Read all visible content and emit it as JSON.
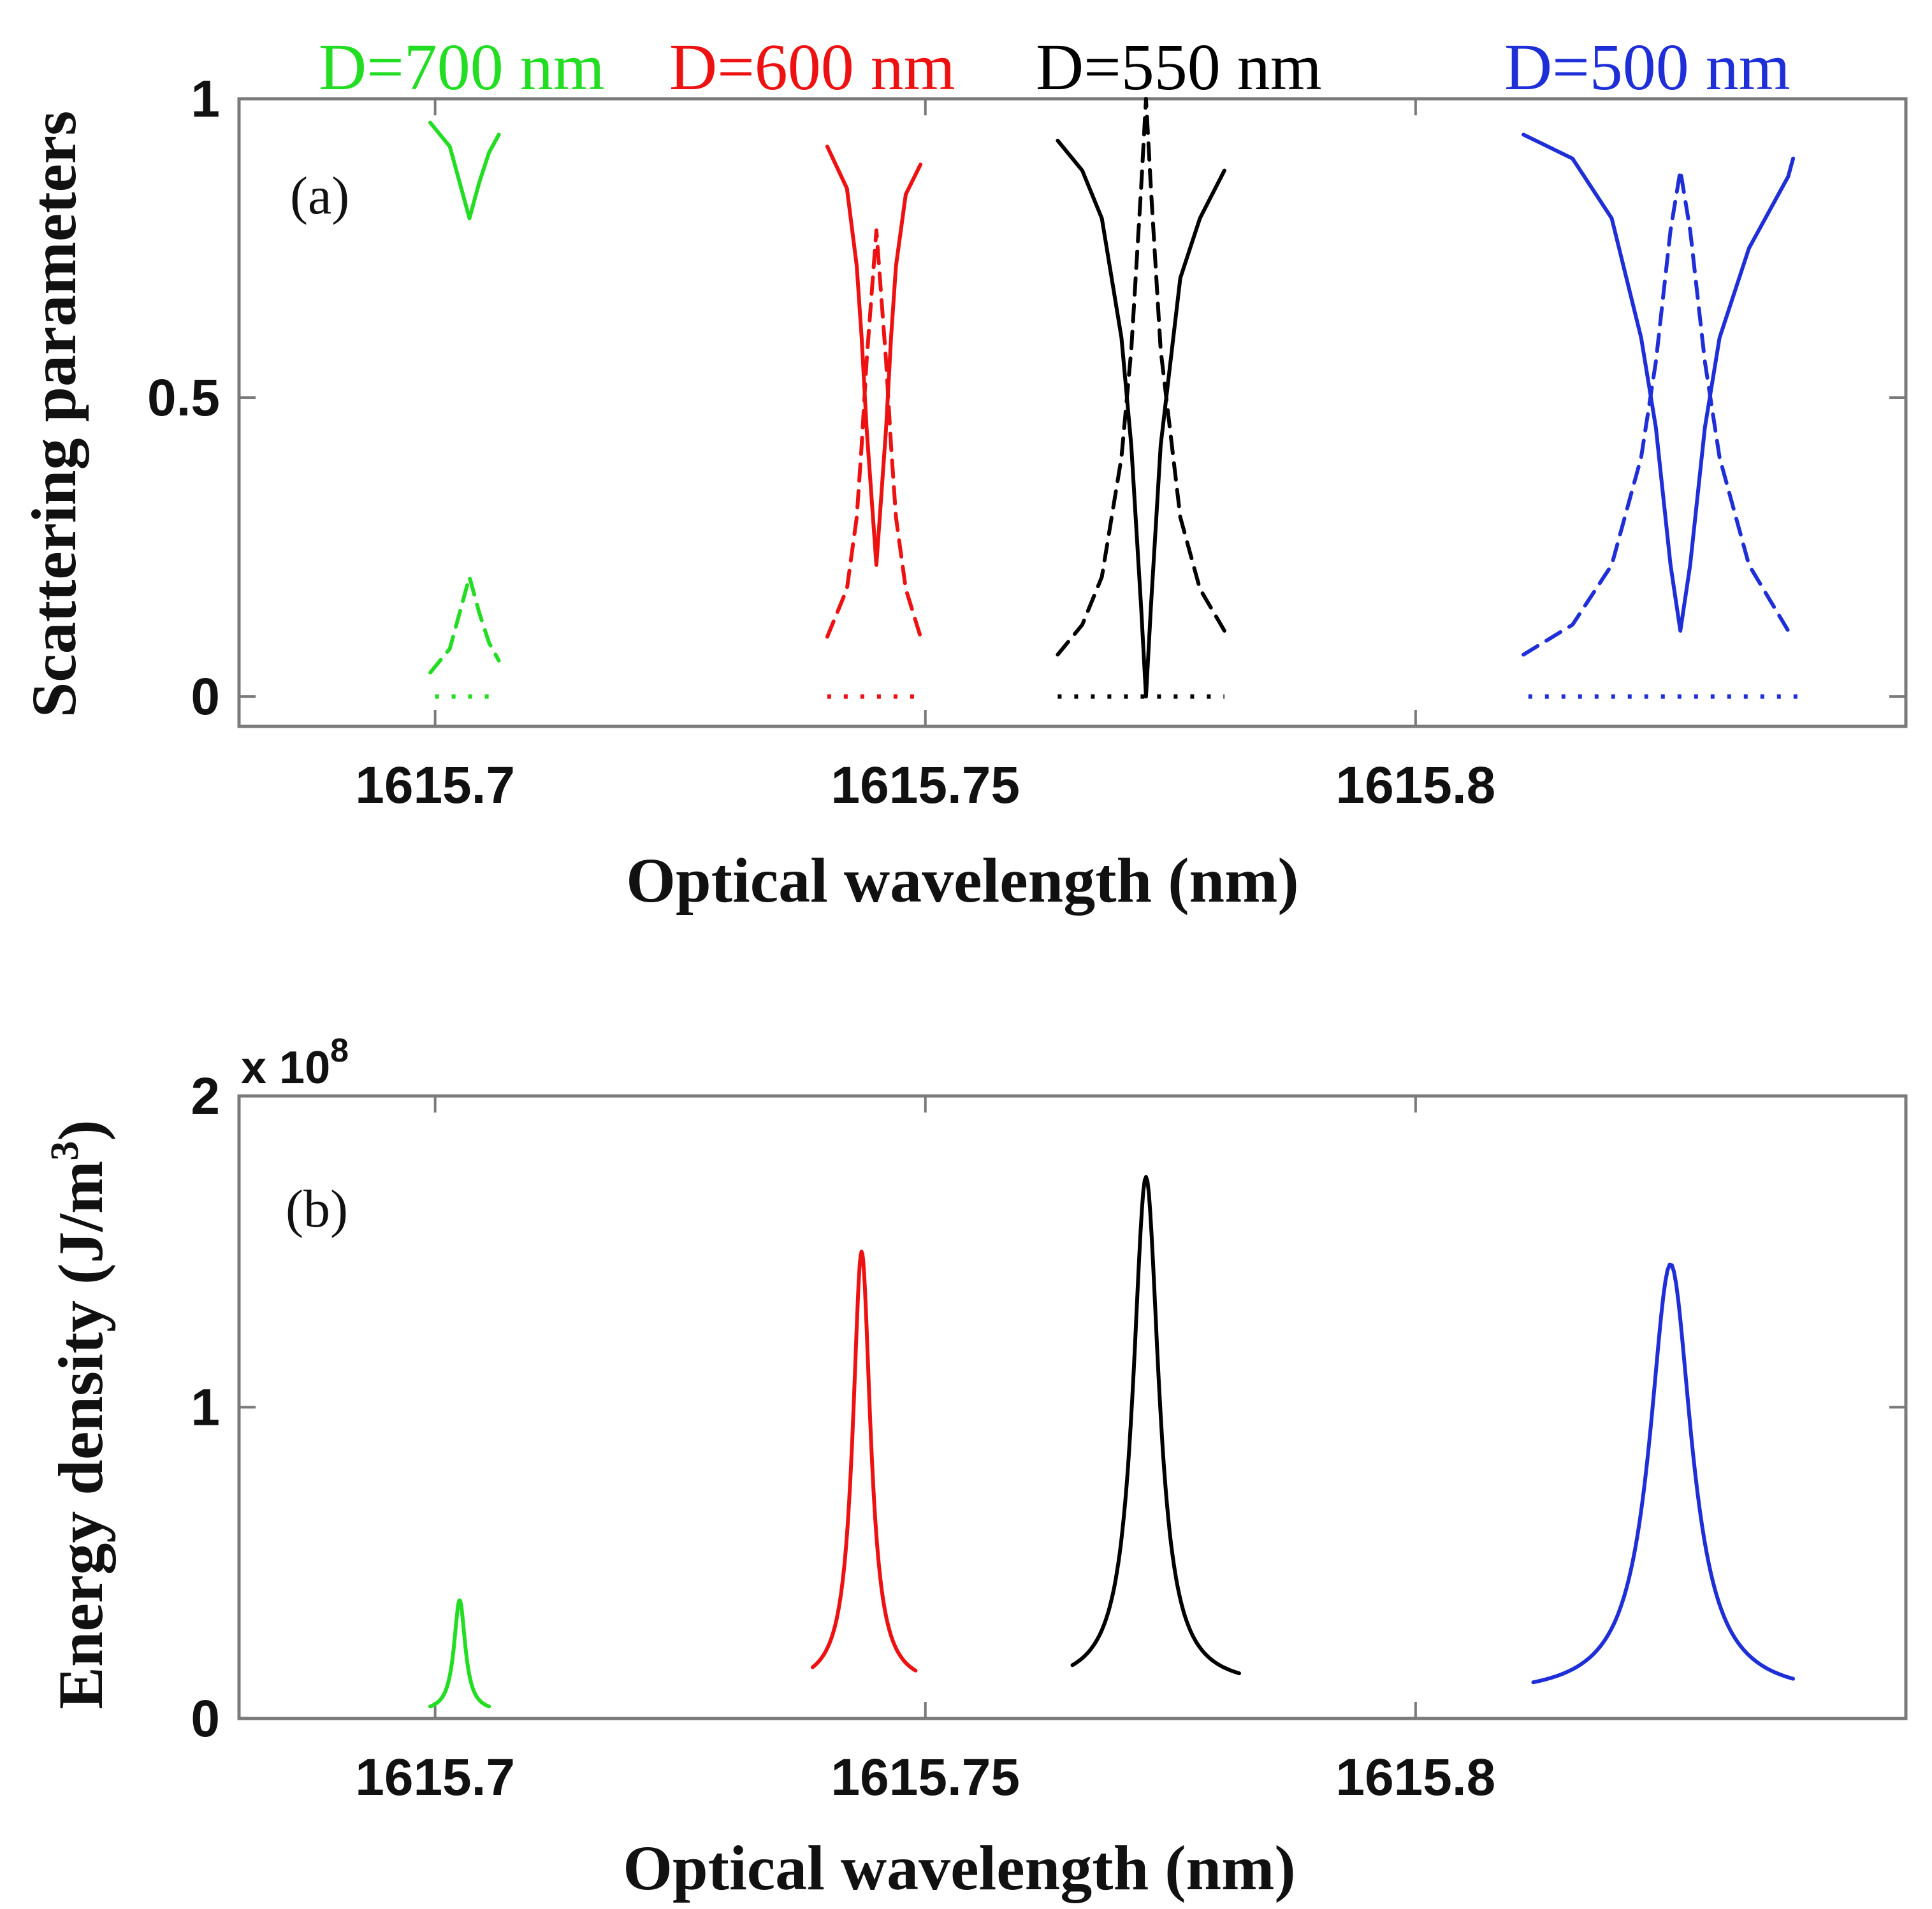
{
  "legend": [
    {
      "label": "D=700 nm",
      "color": "#22dd22"
    },
    {
      "label": "D=600 nm",
      "color": "#ee1111"
    },
    {
      "label": "D=550 nm",
      "color": "#000000"
    },
    {
      "label": "D=500 nm",
      "color": "#1f2fd8"
    }
  ],
  "chart_data": [
    {
      "type": "line",
      "panel": "(a)",
      "title": "",
      "xlabel": "Optical wavelength (nm)",
      "ylabel": "Scattering parameters",
      "xlim": [
        1615.68,
        1615.85
      ],
      "ylim": [
        -0.05,
        1.0
      ],
      "xticks": [
        1615.7,
        1615.75,
        1615.8
      ],
      "xtick_labels": [
        "1615.7",
        "1615.75",
        "1615.8"
      ],
      "yticks": [
        0,
        0.5,
        1
      ],
      "ytick_labels": [
        "0",
        "0.5",
        "1"
      ],
      "series": [
        {
          "name": "D=700 nm",
          "color": "#22dd22",
          "style": "solid",
          "x": [
            1615.6995,
            1615.7015,
            1615.7025,
            1615.7035,
            1615.7045,
            1615.7055,
            1615.7065
          ],
          "y": [
            0.96,
            0.92,
            0.86,
            0.8,
            0.86,
            0.91,
            0.94
          ]
        },
        {
          "name": "D=700 nm",
          "color": "#22dd22",
          "style": "dashed",
          "x": [
            1615.6995,
            1615.7015,
            1615.7025,
            1615.7035,
            1615.7045,
            1615.7055,
            1615.7065
          ],
          "y": [
            0.04,
            0.08,
            0.14,
            0.2,
            0.14,
            0.09,
            0.06
          ]
        },
        {
          "name": "D=700 nm",
          "color": "#22dd22",
          "style": "dotted",
          "x": [
            1615.7,
            1615.7065
          ],
          "y": [
            0.0,
            0.0
          ]
        },
        {
          "name": "D=600 nm",
          "color": "#ee1111",
          "style": "solid",
          "x": [
            1615.74,
            1615.742,
            1615.743,
            1615.7435,
            1615.744,
            1615.745,
            1615.746,
            1615.7465,
            1615.747,
            1615.748,
            1615.7495
          ],
          "y": [
            0.92,
            0.85,
            0.72,
            0.6,
            0.45,
            0.22,
            0.45,
            0.6,
            0.72,
            0.84,
            0.89
          ]
        },
        {
          "name": "D=600 nm",
          "color": "#ee1111",
          "style": "dashed",
          "x": [
            1615.74,
            1615.742,
            1615.743,
            1615.7435,
            1615.744,
            1615.745,
            1615.746,
            1615.7465,
            1615.747,
            1615.748,
            1615.7495
          ],
          "y": [
            0.1,
            0.18,
            0.3,
            0.42,
            0.56,
            0.78,
            0.56,
            0.42,
            0.3,
            0.18,
            0.1
          ]
        },
        {
          "name": "D=600 nm",
          "color": "#ee1111",
          "style": "dotted",
          "x": [
            1615.74,
            1615.7495
          ],
          "y": [
            0.0,
            0.0
          ]
        },
        {
          "name": "D=550 nm",
          "color": "#000000",
          "style": "solid",
          "x": [
            1615.7635,
            1615.766,
            1615.768,
            1615.77,
            1615.771,
            1615.772,
            1615.7725,
            1615.773,
            1615.774,
            1615.776,
            1615.778,
            1615.7805
          ],
          "y": [
            0.93,
            0.88,
            0.8,
            0.6,
            0.42,
            0.15,
            0.0,
            0.15,
            0.42,
            0.7,
            0.8,
            0.88
          ]
        },
        {
          "name": "D=550 nm",
          "color": "#000000",
          "style": "dashed",
          "x": [
            1615.7635,
            1615.766,
            1615.768,
            1615.77,
            1615.771,
            1615.772,
            1615.7725,
            1615.773,
            1615.774,
            1615.776,
            1615.778,
            1615.7805
          ],
          "y": [
            0.07,
            0.12,
            0.2,
            0.4,
            0.58,
            0.85,
            1.0,
            0.85,
            0.58,
            0.3,
            0.18,
            0.11
          ]
        },
        {
          "name": "D=550 nm",
          "color": "#000000",
          "style": "dotted",
          "x": [
            1615.7635,
            1615.7805
          ],
          "y": [
            0.0,
            0.0
          ]
        },
        {
          "name": "D=500 nm",
          "color": "#1f2fd8",
          "style": "solid",
          "x": [
            1615.811,
            1615.816,
            1615.82,
            1615.823,
            1615.8245,
            1615.826,
            1615.827,
            1615.828,
            1615.8295,
            1615.831,
            1615.834,
            1615.838,
            1615.8385
          ],
          "y": [
            0.94,
            0.9,
            0.8,
            0.6,
            0.45,
            0.22,
            0.11,
            0.22,
            0.45,
            0.6,
            0.75,
            0.87,
            0.9
          ]
        },
        {
          "name": "D=500 nm",
          "color": "#1f2fd8",
          "style": "dashed",
          "x": [
            1615.811,
            1615.816,
            1615.82,
            1615.823,
            1615.8245,
            1615.826,
            1615.827,
            1615.828,
            1615.8295,
            1615.831,
            1615.834,
            1615.838,
            1615.8385
          ],
          "y": [
            0.07,
            0.12,
            0.22,
            0.4,
            0.56,
            0.78,
            0.88,
            0.78,
            0.56,
            0.4,
            0.22,
            0.11,
            0.1
          ]
        },
        {
          "name": "D=500 nm",
          "color": "#1f2fd8",
          "style": "dotted",
          "x": [
            1615.8115,
            1615.839
          ],
          "y": [
            0.0,
            0.0
          ]
        }
      ]
    },
    {
      "type": "line",
      "panel": "(b)",
      "title": "",
      "xlabel": "Optical wavelength (nm)",
      "ylabel": "Energy density (J/m",
      "ylabel_superscript": "3",
      "ylabel_suffix": ")",
      "y_exponent": "x 10",
      "y_exponent_power": "8",
      "xlim": [
        1615.68,
        1615.85
      ],
      "ylim": [
        0,
        2
      ],
      "xticks": [
        1615.7,
        1615.75,
        1615.8
      ],
      "xtick_labels": [
        "1615.7",
        "1615.75",
        "1615.8"
      ],
      "yticks": [
        0,
        1,
        2
      ],
      "ytick_labels": [
        "0",
        "1",
        "2"
      ],
      "series": [
        {
          "name": "D=700 nm",
          "color": "#22dd22",
          "style": "solid",
          "peak_x": 1615.7025,
          "peak_y": 0.38,
          "halfwidth": 0.0007,
          "x_start": 1615.6995,
          "x_end": 1615.7055,
          "y_floor": 0.02
        },
        {
          "name": "D=600 nm",
          "color": "#ee1111",
          "style": "solid",
          "peak_x": 1615.7435,
          "peak_y": 1.5,
          "halfwidth": 0.0011,
          "x_start": 1615.7385,
          "x_end": 1615.749,
          "y_floor": 0.1
        },
        {
          "name": "D=550 nm",
          "color": "#000000",
          "style": "solid",
          "peak_x": 1615.7725,
          "peak_y": 1.74,
          "halfwidth": 0.0016,
          "x_start": 1615.765,
          "x_end": 1615.782,
          "y_floor": 0.1
        },
        {
          "name": "D=500 nm",
          "color": "#1f2fd8",
          "style": "solid",
          "peak_x": 1615.826,
          "peak_y": 1.46,
          "halfwidth": 0.0026,
          "x_start": 1615.812,
          "x_end": 1615.8385,
          "y_floor": 0.07
        }
      ]
    }
  ]
}
